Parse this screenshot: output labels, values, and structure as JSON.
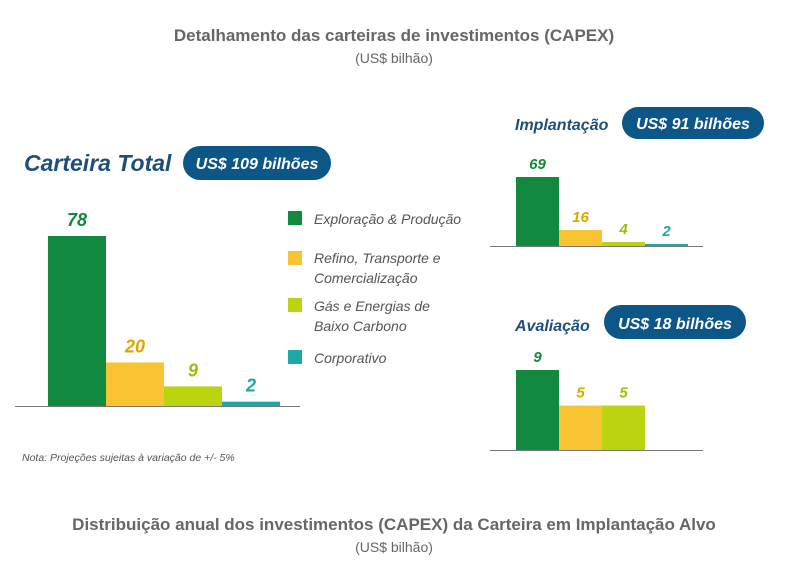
{
  "header": {
    "title": "Detalhamento das carteiras de investimentos (CAPEX)",
    "subtitle": "(US$ bilhão)"
  },
  "footer": {
    "title": "Distribuição anual dos investimentos (CAPEX) da Carteira em Implantação Alvo",
    "subtitle": "(US$ bilhão)"
  },
  "note": "Nota: Projeções sujeitas à variação de +/- 5%",
  "colors": {
    "heading": "#1e4f7a",
    "pill": "#0d5688",
    "exploracao": "#11893f",
    "refino": "#f9c434",
    "gas": "#bcd30f",
    "corporativo": "#1aa9a9"
  },
  "legend": [
    {
      "label": "Exploração & Produção",
      "color": "#11893f"
    },
    {
      "label": "Refino, Transporte e",
      "label2": "Comercialização",
      "color": "#f9c434"
    },
    {
      "label": "Gás e Energias de",
      "label2": "Baixo Carbono",
      "color": "#bcd30f"
    },
    {
      "label": "Corporativo",
      "color": "#1aa9a9"
    }
  ],
  "chart_data": [
    {
      "type": "bar",
      "title": "Carteira Total",
      "badge": "US$ 109 bilhões",
      "categories": [
        "Exploração & Produção",
        "Refino, Transporte e Comercialização",
        "Gás e Energias de Baixo Carbono",
        "Corporativo"
      ],
      "values": [
        78,
        20,
        9,
        2
      ],
      "labels": [
        "78",
        "20",
        "9",
        "2"
      ]
    },
    {
      "type": "bar",
      "title": "Implantação",
      "badge": "US$ 91 bilhões",
      "categories": [
        "Exploração & Produção",
        "Refino, Transporte e Comercialização",
        "Gás e Energias de Baixo Carbono",
        "Corporativo"
      ],
      "values": [
        69,
        16,
        4,
        2
      ],
      "labels": [
        "69",
        "16",
        "4",
        "2"
      ]
    },
    {
      "type": "bar",
      "title": "Avaliação",
      "badge": "US$ 18 bilhões",
      "categories": [
        "Exploração & Produção",
        "Refino, Transporte e Comercialização",
        "Gás e Energias de Baixo Carbono"
      ],
      "values": [
        9,
        5,
        5
      ],
      "labels": [
        "9",
        "5",
        "5"
      ]
    }
  ]
}
